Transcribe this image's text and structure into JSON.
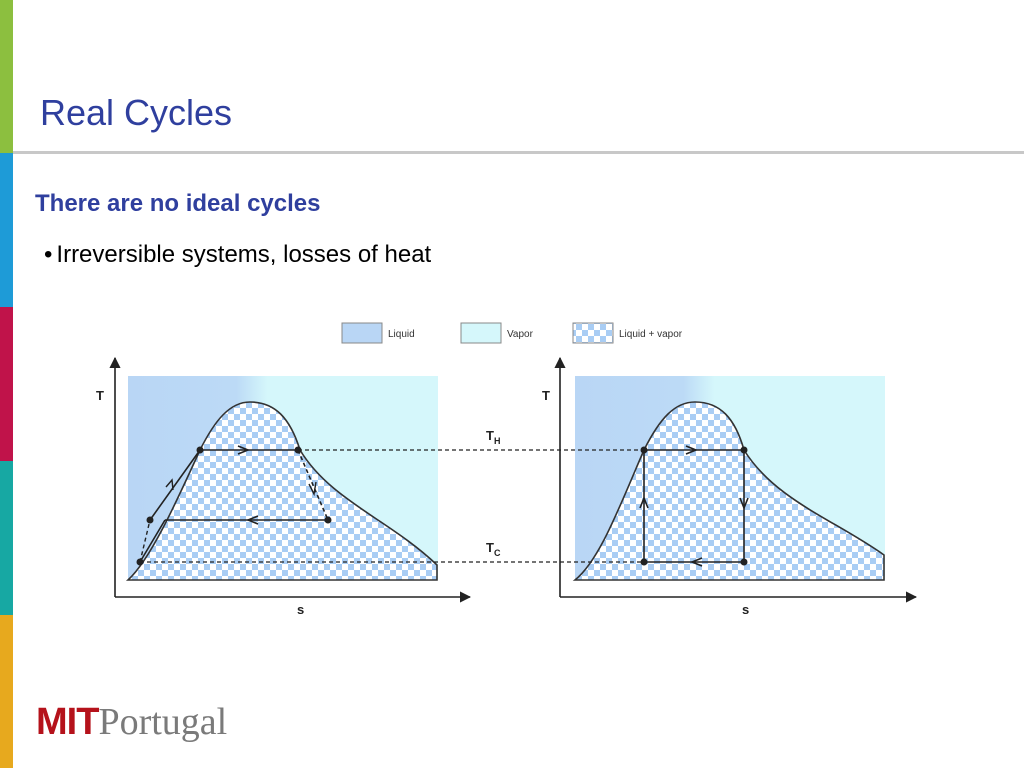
{
  "slide": {
    "title": "Real Cycles",
    "subheading": "There are no ideal cycles",
    "bullet": "Irreversible systems, losses of heat"
  },
  "sidebar_colors": [
    "#8cbf3f",
    "#1e9bd7",
    "#c0134a",
    "#17a8a3",
    "#e7a91e"
  ],
  "legend": {
    "items": [
      {
        "label": "Liquid",
        "color": "#b9d6f5"
      },
      {
        "label": "Vapor",
        "color": "#d5f7fb"
      },
      {
        "label": "Liquid + vapor",
        "pattern": "checker"
      }
    ]
  },
  "diagram": {
    "left_chart": {
      "y_axis_label": "T",
      "x_axis_label": "s"
    },
    "right_chart": {
      "y_axis_label": "T",
      "x_axis_label": "s"
    },
    "hot_label_main": "T",
    "hot_label_sub": "H",
    "cold_label_main": "T",
    "cold_label_sub": "C"
  },
  "footer": {
    "logo_mit": "MIT",
    "logo_portugal": "Portugal"
  }
}
